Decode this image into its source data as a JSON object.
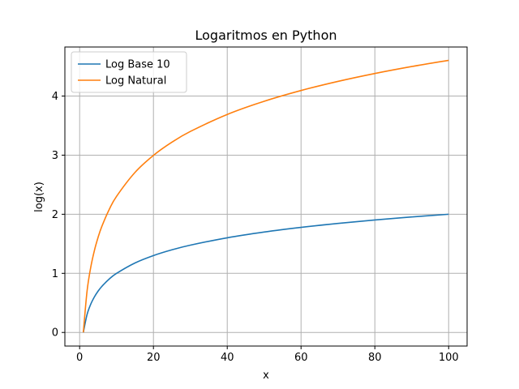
{
  "chart_data": {
    "type": "line",
    "title": "Logaritmos en Python",
    "xlabel": "x",
    "ylabel": "log(x)",
    "xlim": [
      -4,
      105
    ],
    "ylim": [
      -0.23,
      4.83
    ],
    "xticks": [
      0,
      20,
      40,
      60,
      80,
      100
    ],
    "yticks": [
      0,
      1,
      2,
      3,
      4
    ],
    "grid": true,
    "legend_position": "top-left",
    "series": [
      {
        "name": "Log Base 10",
        "color": "#1f77b4",
        "x": [
          1,
          2,
          3,
          4,
          5,
          6,
          8,
          10,
          15,
          20,
          25,
          30,
          40,
          50,
          60,
          70,
          80,
          90,
          100
        ],
        "y": [
          0,
          0.301,
          0.477,
          0.602,
          0.699,
          0.778,
          0.903,
          1.0,
          1.176,
          1.301,
          1.398,
          1.477,
          1.602,
          1.699,
          1.778,
          1.845,
          1.903,
          1.954,
          2.0
        ]
      },
      {
        "name": "Log Natural",
        "color": "#ff7f0e",
        "x": [
          1,
          2,
          3,
          4,
          5,
          6,
          8,
          10,
          15,
          20,
          25,
          30,
          40,
          50,
          60,
          70,
          80,
          90,
          100
        ],
        "y": [
          0,
          0.693,
          1.099,
          1.386,
          1.609,
          1.792,
          2.079,
          2.303,
          2.708,
          2.996,
          3.219,
          3.401,
          3.689,
          3.912,
          4.094,
          4.248,
          4.382,
          4.5,
          4.605
        ]
      }
    ]
  }
}
